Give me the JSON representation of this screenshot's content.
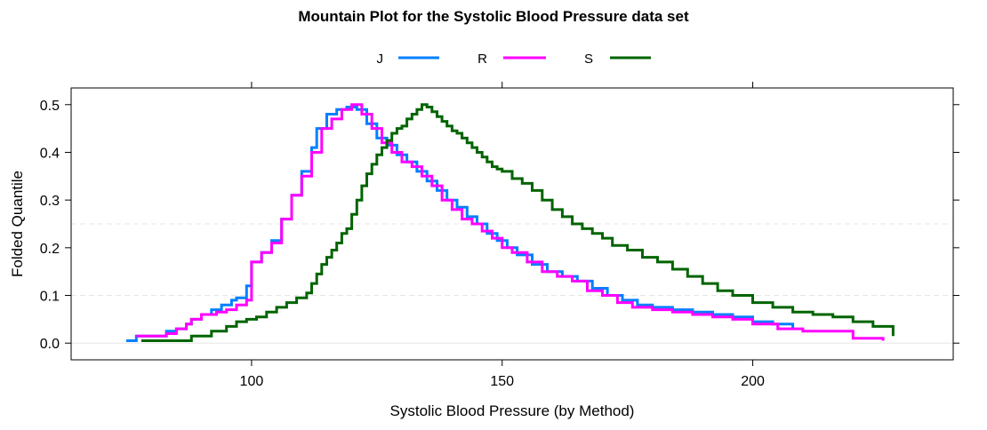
{
  "chart_data": {
    "type": "line",
    "title": "Mountain Plot for the Systolic Blood Pressure data set",
    "xlabel": "Systolic Blood Pressure (by Method)",
    "ylabel": "Folded Quantile",
    "xlim": [
      64,
      240
    ],
    "ylim": [
      -0.035,
      0.535
    ],
    "xticks": [
      100,
      150,
      200
    ],
    "yticks": [
      0.0,
      0.1,
      0.2,
      0.3,
      0.4,
      0.5
    ],
    "ytick_labels": [
      "0.0",
      "0.1",
      "0.2",
      "0.3",
      "0.4",
      "0.5"
    ],
    "reference_lines": [
      0.0,
      0.1,
      0.25
    ],
    "legend_placement": "top",
    "series": [
      {
        "name": "J",
        "color": "#0080ff",
        "x": [
          75,
          77,
          83,
          85,
          87,
          88,
          90,
          92,
          94,
          96,
          97,
          99,
          100,
          102,
          104,
          106,
          108,
          110,
          112,
          113,
          115,
          117,
          119,
          121,
          123,
          125,
          127,
          129,
          131,
          133,
          135,
          137,
          139,
          141,
          143,
          145,
          147,
          149,
          151,
          153,
          156,
          159,
          162,
          165,
          168,
          171,
          174,
          177,
          180,
          184,
          188,
          192,
          196,
          200,
          204,
          208
        ],
        "y": [
          0.005,
          0.015,
          0.025,
          0.03,
          0.04,
          0.05,
          0.06,
          0.07,
          0.08,
          0.09,
          0.095,
          0.12,
          0.17,
          0.19,
          0.215,
          0.26,
          0.31,
          0.36,
          0.41,
          0.45,
          0.48,
          0.49,
          0.495,
          0.49,
          0.46,
          0.43,
          0.415,
          0.395,
          0.38,
          0.36,
          0.34,
          0.32,
          0.3,
          0.285,
          0.265,
          0.25,
          0.23,
          0.215,
          0.2,
          0.185,
          0.165,
          0.15,
          0.14,
          0.13,
          0.115,
          0.1,
          0.09,
          0.08,
          0.075,
          0.07,
          0.065,
          0.06,
          0.055,
          0.045,
          0.04,
          0.03
        ]
      },
      {
        "name": "R",
        "color": "#ff00ff",
        "x": [
          77,
          80,
          83,
          85,
          87,
          88,
          90,
          93,
          95,
          97,
          99,
          100,
          102,
          104,
          106,
          108,
          110,
          112,
          114,
          116,
          118,
          120,
          122,
          124,
          126,
          128,
          130,
          132,
          134,
          136,
          138,
          140,
          142,
          144,
          146,
          148,
          150,
          152,
          155,
          158,
          161,
          164,
          167,
          170,
          173,
          176,
          180,
          184,
          188,
          192,
          196,
          200,
          205,
          210,
          215,
          220,
          226
        ],
        "y": [
          0.015,
          0.015,
          0.02,
          0.03,
          0.04,
          0.05,
          0.06,
          0.065,
          0.07,
          0.08,
          0.09,
          0.17,
          0.19,
          0.21,
          0.26,
          0.31,
          0.35,
          0.4,
          0.45,
          0.47,
          0.49,
          0.5,
          0.48,
          0.45,
          0.42,
          0.4,
          0.38,
          0.37,
          0.35,
          0.33,
          0.3,
          0.28,
          0.26,
          0.25,
          0.235,
          0.22,
          0.2,
          0.19,
          0.17,
          0.15,
          0.14,
          0.13,
          0.11,
          0.1,
          0.085,
          0.075,
          0.07,
          0.065,
          0.06,
          0.055,
          0.05,
          0.04,
          0.03,
          0.025,
          0.025,
          0.01,
          0.005
        ]
      },
      {
        "name": "S",
        "color": "#006400",
        "x": [
          78,
          88,
          92,
          95,
          97,
          99,
          101,
          103,
          105,
          107,
          109,
          111,
          112,
          113,
          114,
          115,
          116,
          117,
          118,
          119,
          120,
          121,
          122,
          123,
          124,
          125,
          126,
          127,
          128,
          129,
          130,
          131,
          132,
          133,
          134,
          135,
          136,
          137,
          138,
          139,
          140,
          141,
          142,
          143,
          144,
          145,
          146,
          147,
          148,
          149,
          150,
          152,
          154,
          156,
          158,
          160,
          162,
          164,
          166,
          168,
          170,
          172,
          175,
          178,
          181,
          184,
          187,
          190,
          193,
          196,
          200,
          204,
          208,
          212,
          216,
          220,
          224,
          228
        ],
        "y": [
          0.005,
          0.015,
          0.025,
          0.035,
          0.045,
          0.05,
          0.055,
          0.065,
          0.075,
          0.085,
          0.095,
          0.105,
          0.125,
          0.145,
          0.165,
          0.18,
          0.195,
          0.21,
          0.23,
          0.24,
          0.27,
          0.3,
          0.33,
          0.355,
          0.375,
          0.395,
          0.41,
          0.425,
          0.44,
          0.45,
          0.455,
          0.47,
          0.48,
          0.49,
          0.5,
          0.495,
          0.485,
          0.475,
          0.465,
          0.455,
          0.445,
          0.44,
          0.43,
          0.42,
          0.41,
          0.4,
          0.39,
          0.38,
          0.37,
          0.365,
          0.36,
          0.345,
          0.335,
          0.32,
          0.3,
          0.28,
          0.265,
          0.25,
          0.24,
          0.23,
          0.22,
          0.205,
          0.195,
          0.18,
          0.17,
          0.155,
          0.14,
          0.125,
          0.11,
          0.1,
          0.085,
          0.075,
          0.065,
          0.06,
          0.055,
          0.045,
          0.035,
          0.015
        ]
      }
    ]
  }
}
